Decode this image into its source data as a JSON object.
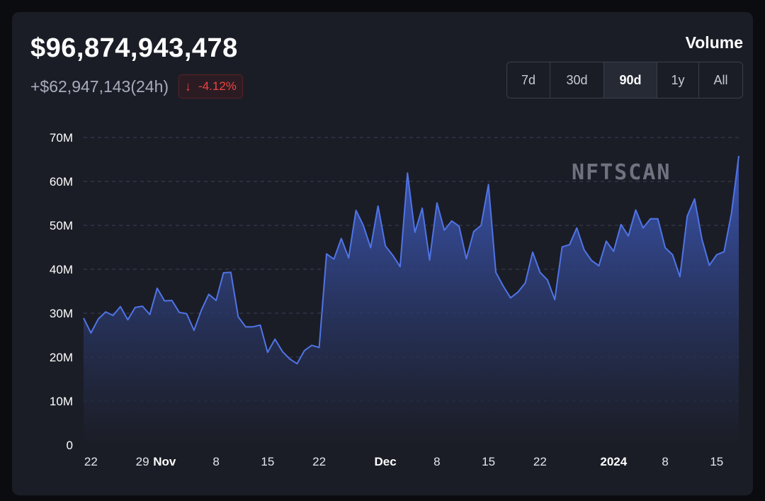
{
  "summary": {
    "total": "$96,874,943,478",
    "change_24h": "+$62,947,143(24h)",
    "pct_change": "-4.12%",
    "pct_icon": "arrow-down-icon",
    "metric_label": "Volume"
  },
  "range_tabs": [
    {
      "label": "7d",
      "active": false
    },
    {
      "label": "30d",
      "active": false
    },
    {
      "label": "90d",
      "active": true
    },
    {
      "label": "1y",
      "active": false
    },
    {
      "label": "All",
      "active": false
    }
  ],
  "watermark": "NFTSCAN",
  "colors": {
    "line": "#4f74e6",
    "area_top": "#3e5bc0",
    "area_bottom": "#1b1d26",
    "negative": "#ef4444",
    "grid": "#3a3e55"
  },
  "chart_data": {
    "type": "area",
    "ylabel": "",
    "xlabel": "",
    "ylim": [
      0,
      70
    ],
    "y_ticks": [
      {
        "value": 0,
        "label": "0"
      },
      {
        "value": 10,
        "label": "10M"
      },
      {
        "value": 20,
        "label": "20M"
      },
      {
        "value": 30,
        "label": "30M"
      },
      {
        "value": 40,
        "label": "40M"
      },
      {
        "value": 50,
        "label": "50M"
      },
      {
        "value": 60,
        "label": "60M"
      },
      {
        "value": 70,
        "label": "70M"
      }
    ],
    "grid": "horizontal-dashed",
    "x_ticks": [
      {
        "index": 1,
        "label": "22",
        "major": false
      },
      {
        "index": 8,
        "label": "29",
        "major": false
      },
      {
        "index": 11,
        "label": "Nov",
        "major": true
      },
      {
        "index": 18,
        "label": "8",
        "major": false
      },
      {
        "index": 25,
        "label": "15",
        "major": false
      },
      {
        "index": 32,
        "label": "22",
        "major": false
      },
      {
        "index": 41,
        "label": "Dec",
        "major": true
      },
      {
        "index": 48,
        "label": "8",
        "major": false
      },
      {
        "index": 55,
        "label": "15",
        "major": false
      },
      {
        "index": 62,
        "label": "22",
        "major": false
      },
      {
        "index": 72,
        "label": "2024",
        "major": true
      },
      {
        "index": 79,
        "label": "8",
        "major": false
      },
      {
        "index": 86,
        "label": "15",
        "major": false
      }
    ],
    "series": [
      {
        "values": [
          28.9,
          25.5,
          28.7,
          30.3,
          29.5,
          31.5,
          28.5,
          31.3,
          31.6,
          29.7,
          35.7,
          32.8,
          32.9,
          30.2,
          29.9,
          26.1,
          30.7,
          34.3,
          32.9,
          39.2,
          39.3,
          29.2,
          26.9,
          26.9,
          27.3,
          21.1,
          24.1,
          21.3,
          19.6,
          18.5,
          21.5,
          22.7,
          22.2,
          43.5,
          42.3,
          47.0,
          42.6,
          53.4,
          50.0,
          44.9,
          54.4,
          45.3,
          43.2,
          40.6,
          61.9,
          48.4,
          53.9,
          42.1,
          55.1,
          48.9,
          51.0,
          49.8,
          42.4,
          48.6,
          50.0,
          59.3,
          39.3,
          36.2,
          33.5,
          34.8,
          36.9,
          43.9,
          39.3,
          37.6,
          33.1,
          45.1,
          45.6,
          49.4,
          44.4,
          42.0,
          40.8,
          46.4,
          44.1,
          50.2,
          47.6,
          53.5,
          49.4,
          51.5,
          51.5,
          44.9,
          43.3,
          38.3,
          52.1,
          56.0,
          46.8,
          40.9,
          43.3,
          44.0,
          52.7,
          65.8
        ]
      }
    ]
  }
}
